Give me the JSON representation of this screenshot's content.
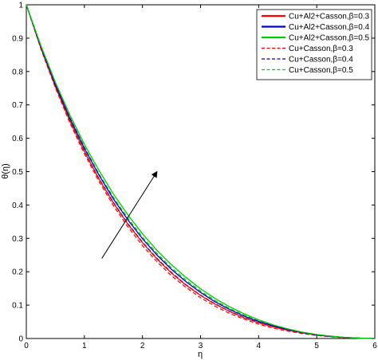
{
  "chart_data": {
    "type": "line",
    "title": "",
    "xlabel": "η",
    "ylabel": "θ(η)",
    "xlim": [
      0,
      6
    ],
    "ylim": [
      0,
      1
    ],
    "xticks": [
      0,
      1,
      2,
      3,
      4,
      5,
      6
    ],
    "yticks": [
      0,
      0.1,
      0.2,
      0.3,
      0.4,
      0.5,
      0.6,
      0.7,
      0.8,
      0.9,
      1
    ],
    "xtick_labels": [
      "0",
      "1",
      "2",
      "3",
      "4",
      "5",
      "6"
    ],
    "ytick_labels": [
      "0",
      "0.1",
      "0.2",
      "0.3",
      "0.4",
      "0.5",
      "0.6",
      "0.7",
      "0.8",
      "0.9",
      "1"
    ],
    "grid": false,
    "legend_position": "top-right",
    "x": [
      0,
      0.25,
      0.5,
      0.75,
      1,
      1.25,
      1.5,
      1.75,
      2,
      2.25,
      2.5,
      2.75,
      3,
      3.25,
      3.5,
      3.75,
      4,
      4.25,
      4.5,
      4.75,
      5,
      5.25,
      5.5,
      5.75,
      6
    ],
    "series": [
      {
        "name": "Cu+Al2+Casson,β=0.3",
        "color": "#ff0000",
        "style": "solid",
        "values": [
          1.0,
          0.871,
          0.755,
          0.652,
          0.56,
          0.478,
          0.406,
          0.342,
          0.287,
          0.238,
          0.196,
          0.16,
          0.129,
          0.103,
          0.081,
          0.062,
          0.047,
          0.035,
          0.025,
          0.017,
          0.011,
          0.006,
          0.003,
          0.001,
          0.0
        ]
      },
      {
        "name": "Cu+Al2+Casson,β=0.4",
        "color": "#0000cc",
        "style": "solid",
        "values": [
          1.0,
          0.874,
          0.761,
          0.66,
          0.57,
          0.49,
          0.418,
          0.355,
          0.299,
          0.25,
          0.207,
          0.17,
          0.138,
          0.11,
          0.087,
          0.067,
          0.051,
          0.038,
          0.027,
          0.018,
          0.011,
          0.006,
          0.003,
          0.001,
          0.0
        ]
      },
      {
        "name": "Cu+Al2+Casson,β=0.5",
        "color": "#00cc00",
        "style": "solid",
        "values": [
          1.0,
          0.878,
          0.768,
          0.67,
          0.582,
          0.504,
          0.433,
          0.37,
          0.314,
          0.264,
          0.221,
          0.183,
          0.149,
          0.12,
          0.095,
          0.074,
          0.056,
          0.041,
          0.029,
          0.019,
          0.012,
          0.007,
          0.003,
          0.001,
          0.0
        ]
      },
      {
        "name": "Cu+Casson,β=0.3",
        "color": "#ff0000",
        "style": "dashed",
        "values": [
          1.0,
          0.868,
          0.751,
          0.646,
          0.553,
          0.471,
          0.398,
          0.334,
          0.278,
          0.23,
          0.188,
          0.153,
          0.122,
          0.097,
          0.075,
          0.058,
          0.043,
          0.031,
          0.022,
          0.015,
          0.009,
          0.005,
          0.002,
          0.001,
          0.0
        ]
      },
      {
        "name": "Cu+Casson,β=0.4",
        "color": "#0000cc",
        "style": "dashed",
        "values": [
          1.0,
          0.871,
          0.756,
          0.653,
          0.562,
          0.48,
          0.408,
          0.344,
          0.289,
          0.24,
          0.198,
          0.161,
          0.13,
          0.104,
          0.082,
          0.063,
          0.048,
          0.035,
          0.025,
          0.017,
          0.01,
          0.006,
          0.003,
          0.001,
          0.0
        ]
      },
      {
        "name": "Cu+Casson,β=0.5",
        "color": "#00cc00",
        "style": "dashed",
        "values": [
          1.0,
          0.875,
          0.763,
          0.663,
          0.574,
          0.494,
          0.423,
          0.36,
          0.304,
          0.255,
          0.212,
          0.175,
          0.142,
          0.114,
          0.09,
          0.07,
          0.053,
          0.039,
          0.028,
          0.019,
          0.012,
          0.006,
          0.003,
          0.001,
          0.0
        ]
      }
    ],
    "annotation": {
      "type": "arrow",
      "from": [
        1.3,
        0.24
      ],
      "to": [
        2.25,
        0.5
      ]
    }
  }
}
